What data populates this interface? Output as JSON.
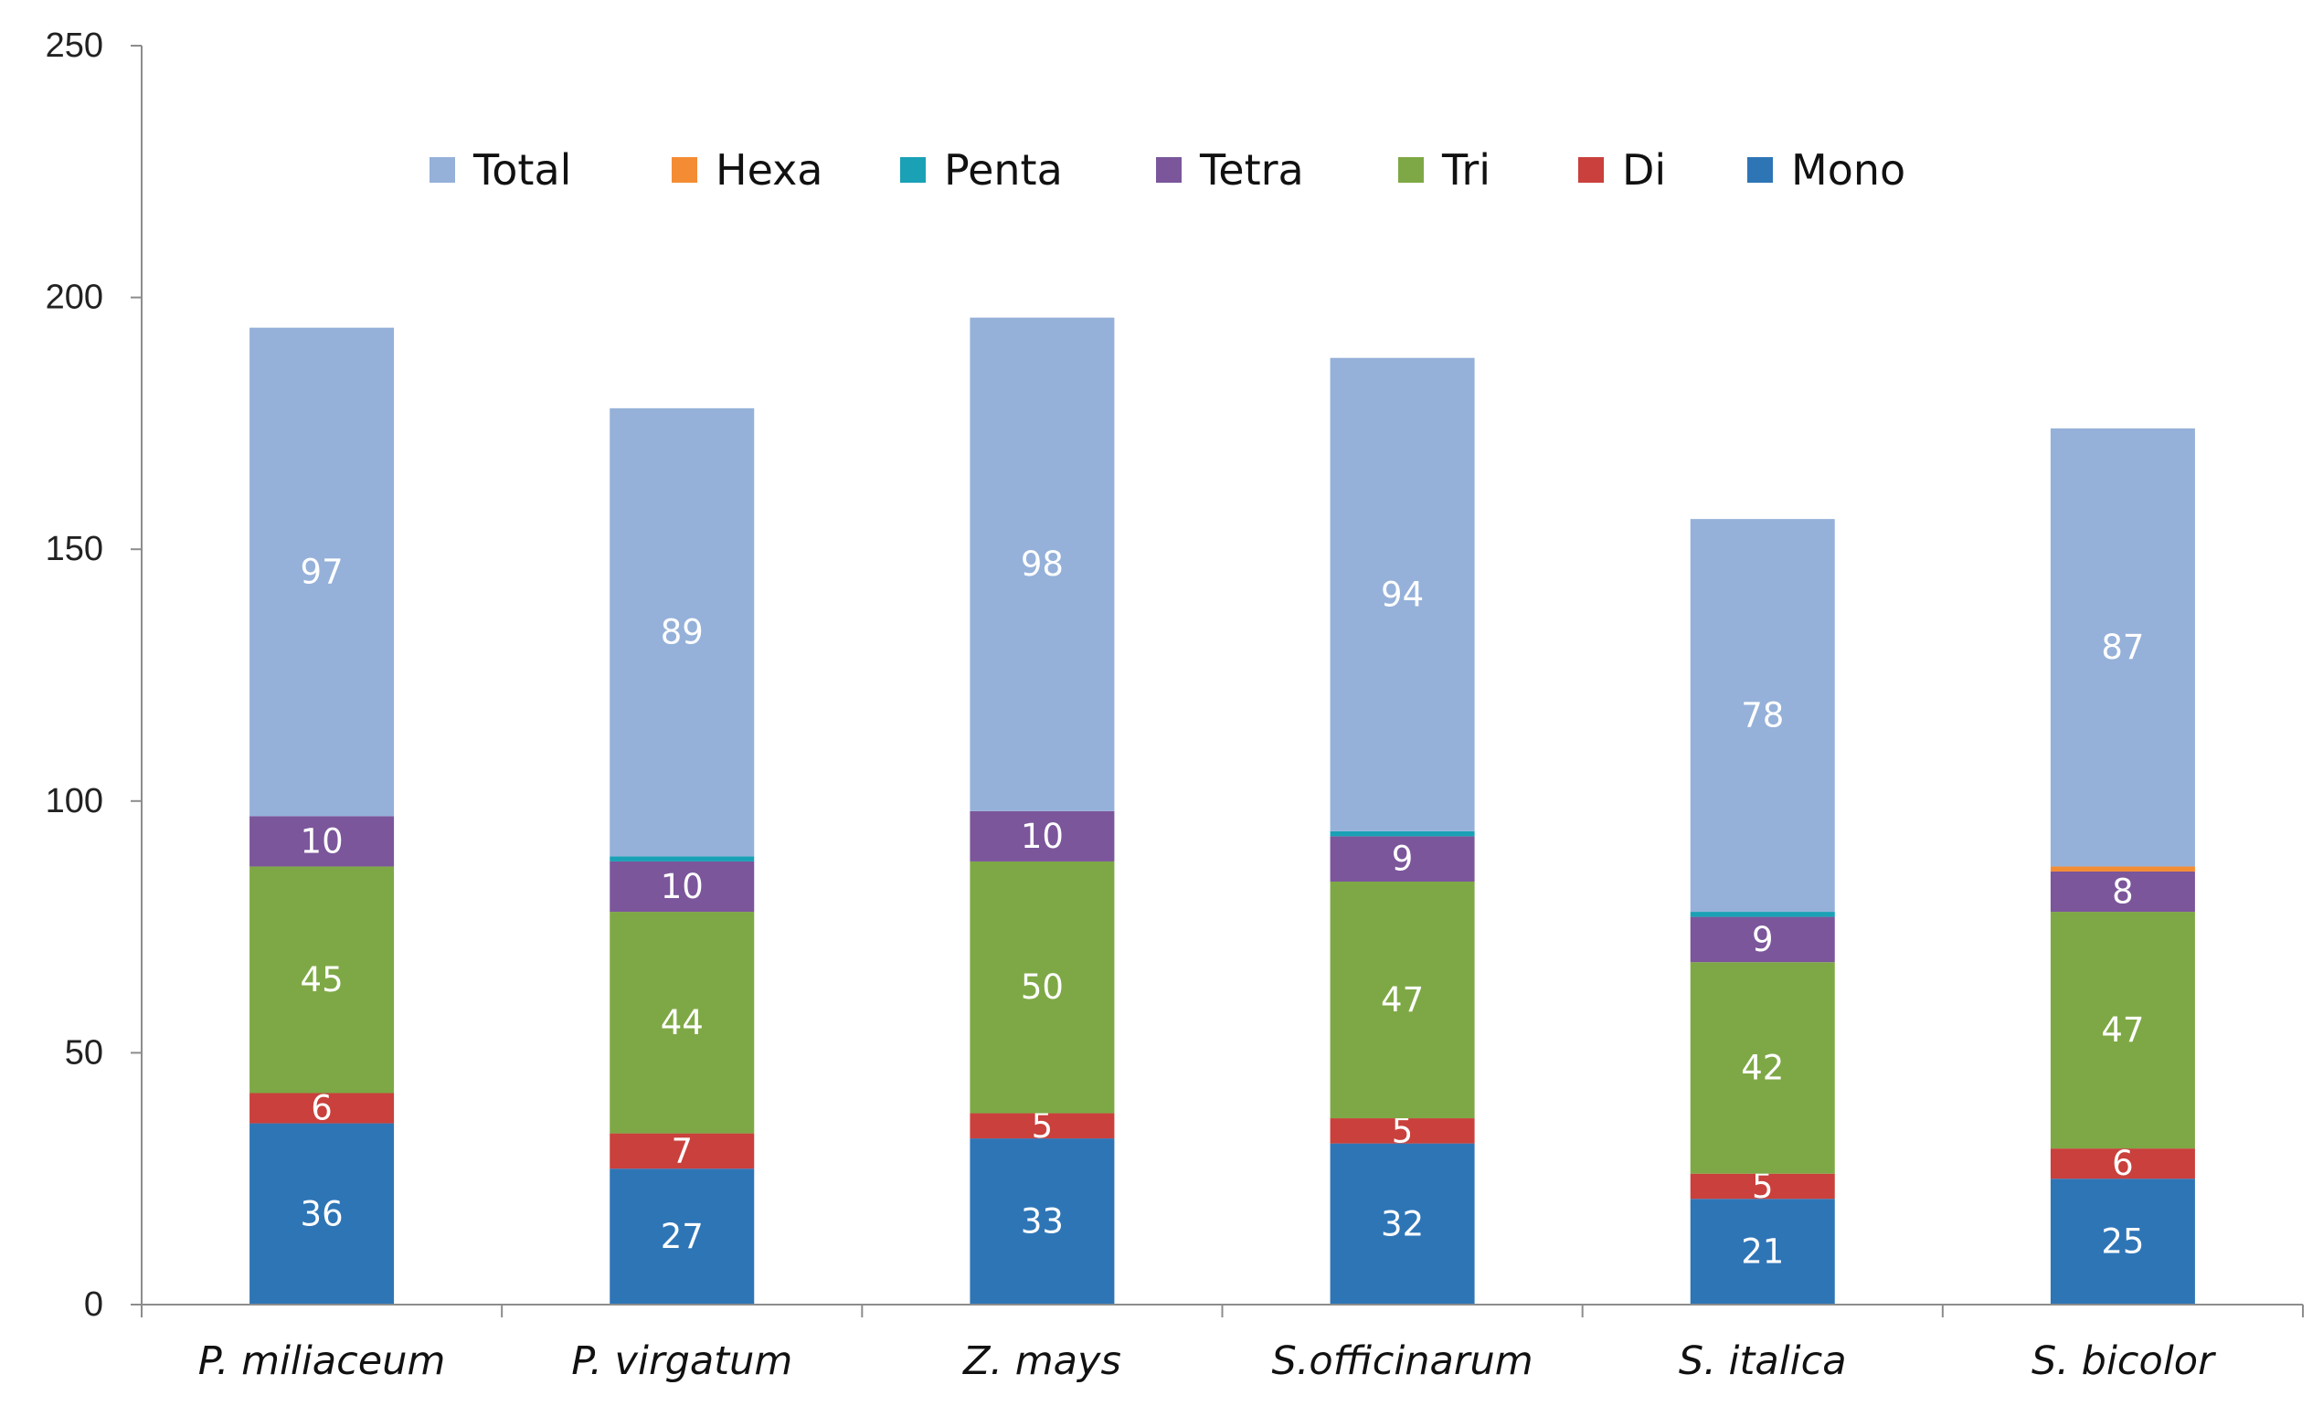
{
  "chart_data": {
    "type": "bar",
    "stacked": true,
    "title": "",
    "xlabel": "",
    "ylabel": "",
    "ylim": [
      0,
      250
    ],
    "yticks": [
      0,
      50,
      100,
      150,
      200,
      250
    ],
    "grid": false,
    "legend_position": "top",
    "categories": [
      "P. miliaceum",
      "P. virgatum",
      "Z. mays",
      "S.officinarum",
      "S. italica",
      "S. bicolor"
    ],
    "series": [
      {
        "name": "Mono",
        "color": "#2e75b6",
        "values": [
          36,
          27,
          33,
          32,
          21,
          25
        ],
        "labels": [
          "36",
          "27",
          "33",
          "32",
          "21",
          "25"
        ]
      },
      {
        "name": "Di",
        "color": "#c9403c",
        "values": [
          6,
          7,
          5,
          5,
          5,
          6
        ],
        "labels": [
          "6",
          "7",
          "5",
          "5",
          "5",
          "6"
        ]
      },
      {
        "name": "Tri",
        "color": "#7ea845",
        "values": [
          45,
          44,
          50,
          47,
          42,
          47
        ],
        "labels": [
          "45",
          "44",
          "50",
          "47",
          "42",
          "47"
        ]
      },
      {
        "name": "Tetra",
        "color": "#7b569b",
        "values": [
          10,
          10,
          10,
          9,
          9,
          8
        ],
        "labels": [
          "10",
          "10",
          "10",
          "9",
          "9",
          "8"
        ]
      },
      {
        "name": "Penta",
        "color": "#1aa1b6",
        "values": [
          0,
          1,
          0,
          1,
          1,
          0
        ],
        "labels": [
          "",
          "",
          "",
          "",
          "",
          ""
        ]
      },
      {
        "name": "Hexa",
        "color": "#f48c34",
        "values": [
          0,
          0,
          0,
          0,
          0,
          1
        ],
        "labels": [
          "",
          "",
          "",
          "",
          "",
          ""
        ]
      },
      {
        "name": "Total",
        "color": "#95b1d9",
        "values": [
          97,
          89,
          98,
          94,
          78,
          87
        ],
        "labels": [
          "97",
          "89",
          "98",
          "94",
          "78",
          "87"
        ]
      }
    ],
    "legend_order": [
      "Total",
      "Hexa",
      "Penta",
      "Tetra",
      "Tri",
      "Di",
      "Mono"
    ]
  }
}
